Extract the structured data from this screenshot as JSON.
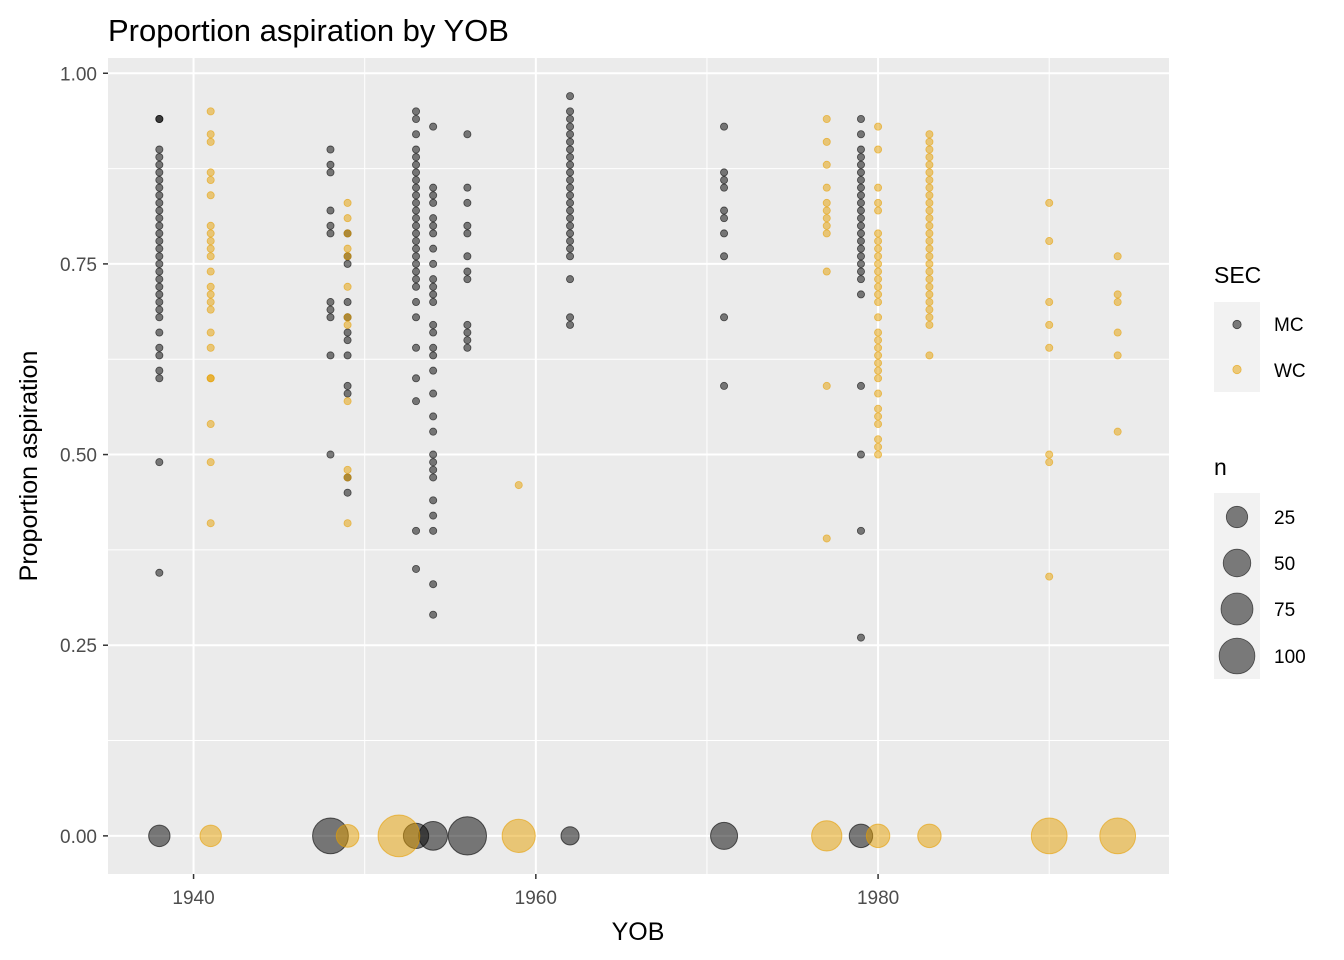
{
  "chart_data": {
    "type": "scatter",
    "title": "Proportion aspiration by YOB",
    "xlabel": "YOB",
    "ylabel": "Proportion aspiration",
    "xlim": [
      1935,
      1997
    ],
    "ylim": [
      -0.05,
      1.02
    ],
    "x_ticks": [
      1940,
      1960,
      1980
    ],
    "x_tick_labels": [
      "1940",
      "1960",
      "1980"
    ],
    "y_ticks": [
      0,
      0.25,
      0.5,
      0.75,
      1.0
    ],
    "y_tick_labels": [
      "0.00",
      "0.25",
      "0.50",
      "0.75",
      "1.00"
    ],
    "grid": true,
    "legend_position": "right",
    "colors": {
      "MC": "#000000",
      "WC": "#E69F00",
      "panel": "#EBEBEB",
      "grid": "#FFFFFF"
    },
    "color_legend": {
      "title": "SEC",
      "entries": [
        "MC",
        "WC"
      ]
    },
    "size_legend": {
      "title": "n",
      "entries": [
        25,
        50,
        75,
        100
      ]
    },
    "series": [
      {
        "name": "MC",
        "points": [
          {
            "x": 1938,
            "y": [
              0.94,
              0.94,
              0.9,
              0.89,
              0.88,
              0.87,
              0.86,
              0.85,
              0.84,
              0.83,
              0.82,
              0.81,
              0.8,
              0.79,
              0.78,
              0.77,
              0.76,
              0.75,
              0.74,
              0.73,
              0.72,
              0.71,
              0.7,
              0.69,
              0.68,
              0.66,
              0.64,
              0.63,
              0.61,
              0.6,
              0.49,
              0.345
            ]
          },
          {
            "x": 1948,
            "y": [
              0.9,
              0.88,
              0.87,
              0.82,
              0.8,
              0.79,
              0.7,
              0.69,
              0.68,
              0.63,
              0.5
            ]
          },
          {
            "x": 1949,
            "y": [
              0.79,
              0.76,
              0.75,
              0.7,
              0.68,
              0.66,
              0.65,
              0.63,
              0.59,
              0.58,
              0.47,
              0.45
            ]
          },
          {
            "x": 1953,
            "y": [
              0.95,
              0.94,
              0.92,
              0.9,
              0.89,
              0.88,
              0.87,
              0.86,
              0.85,
              0.84,
              0.83,
              0.82,
              0.81,
              0.8,
              0.79,
              0.78,
              0.77,
              0.76,
              0.75,
              0.74,
              0.73,
              0.72,
              0.7,
              0.68,
              0.64,
              0.6,
              0.57,
              0.4,
              0.35
            ]
          },
          {
            "x": 1954,
            "y": [
              0.93,
              0.85,
              0.84,
              0.83,
              0.81,
              0.8,
              0.79,
              0.77,
              0.75,
              0.73,
              0.72,
              0.71,
              0.7,
              0.67,
              0.66,
              0.64,
              0.63,
              0.61,
              0.58,
              0.55,
              0.53,
              0.5,
              0.49,
              0.48,
              0.47,
              0.44,
              0.42,
              0.4,
              0.33,
              0.29
            ]
          },
          {
            "x": 1956,
            "y": [
              0.92,
              0.85,
              0.83,
              0.8,
              0.79,
              0.76,
              0.74,
              0.73,
              0.67,
              0.66,
              0.65,
              0.64
            ]
          },
          {
            "x": 1962,
            "y": [
              0.97,
              0.95,
              0.94,
              0.93,
              0.92,
              0.91,
              0.9,
              0.89,
              0.88,
              0.87,
              0.86,
              0.85,
              0.84,
              0.83,
              0.82,
              0.81,
              0.8,
              0.79,
              0.78,
              0.77,
              0.76,
              0.73,
              0.68,
              0.67
            ]
          },
          {
            "x": 1971,
            "y": [
              0.93,
              0.87,
              0.86,
              0.85,
              0.82,
              0.81,
              0.79,
              0.76,
              0.68,
              0.59
            ]
          },
          {
            "x": 1979,
            "y": [
              0.94,
              0.92,
              0.9,
              0.89,
              0.88,
              0.87,
              0.86,
              0.85,
              0.84,
              0.83,
              0.82,
              0.81,
              0.8,
              0.79,
              0.78,
              0.77,
              0.76,
              0.75,
              0.74,
              0.73,
              0.71,
              0.59,
              0.5,
              0.4,
              0.26
            ]
          }
        ],
        "zero_points": [
          {
            "x": 1938,
            "n": 25
          },
          {
            "x": 1948,
            "n": 70
          },
          {
            "x": 1953,
            "n": 35
          },
          {
            "x": 1954,
            "n": 45
          },
          {
            "x": 1956,
            "n": 80
          },
          {
            "x": 1962,
            "n": 18
          },
          {
            "x": 1971,
            "n": 40
          },
          {
            "x": 1979,
            "n": 30
          }
        ]
      },
      {
        "name": "WC",
        "points": [
          {
            "x": 1941,
            "y": [
              0.95,
              0.92,
              0.91,
              0.87,
              0.86,
              0.84,
              0.8,
              0.79,
              0.78,
              0.77,
              0.76,
              0.74,
              0.72,
              0.71,
              0.7,
              0.69,
              0.66,
              0.64,
              0.6,
              0.6,
              0.54,
              0.49,
              0.41
            ]
          },
          {
            "x": 1949,
            "y": [
              0.83,
              0.81,
              0.79,
              0.77,
              0.76,
              0.72,
              0.68,
              0.67,
              0.57,
              0.48,
              0.47,
              0.41
            ]
          },
          {
            "x": 1959,
            "y": [
              0.46
            ]
          },
          {
            "x": 1977,
            "y": [
              0.94,
              0.91,
              0.88,
              0.85,
              0.83,
              0.82,
              0.81,
              0.8,
              0.79,
              0.74,
              0.59,
              0.39
            ]
          },
          {
            "x": 1980,
            "y": [
              0.93,
              0.9,
              0.85,
              0.83,
              0.82,
              0.79,
              0.78,
              0.77,
              0.76,
              0.75,
              0.74,
              0.73,
              0.72,
              0.71,
              0.7,
              0.68,
              0.66,
              0.65,
              0.64,
              0.63,
              0.62,
              0.61,
              0.6,
              0.58,
              0.56,
              0.55,
              0.54,
              0.52,
              0.51,
              0.5
            ]
          },
          {
            "x": 1983,
            "y": [
              0.92,
              0.91,
              0.9,
              0.89,
              0.88,
              0.87,
              0.86,
              0.85,
              0.84,
              0.83,
              0.82,
              0.81,
              0.8,
              0.79,
              0.78,
              0.77,
              0.76,
              0.75,
              0.74,
              0.73,
              0.72,
              0.71,
              0.7,
              0.69,
              0.68,
              0.67,
              0.63
            ]
          },
          {
            "x": 1990,
            "y": [
              0.83,
              0.78,
              0.7,
              0.67,
              0.64,
              0.5,
              0.49,
              0.34
            ]
          },
          {
            "x": 1994,
            "y": [
              0.76,
              0.71,
              0.7,
              0.66,
              0.63,
              0.53
            ]
          }
        ],
        "zero_points": [
          {
            "x": 1941,
            "n": 25
          },
          {
            "x": 1949,
            "n": 28
          },
          {
            "x": 1952,
            "n": 95
          },
          {
            "x": 1959,
            "n": 60
          },
          {
            "x": 1977,
            "n": 50
          },
          {
            "x": 1980,
            "n": 30
          },
          {
            "x": 1983,
            "n": 30
          },
          {
            "x": 1990,
            "n": 70
          },
          {
            "x": 1994,
            "n": 70
          }
        ]
      }
    ]
  }
}
